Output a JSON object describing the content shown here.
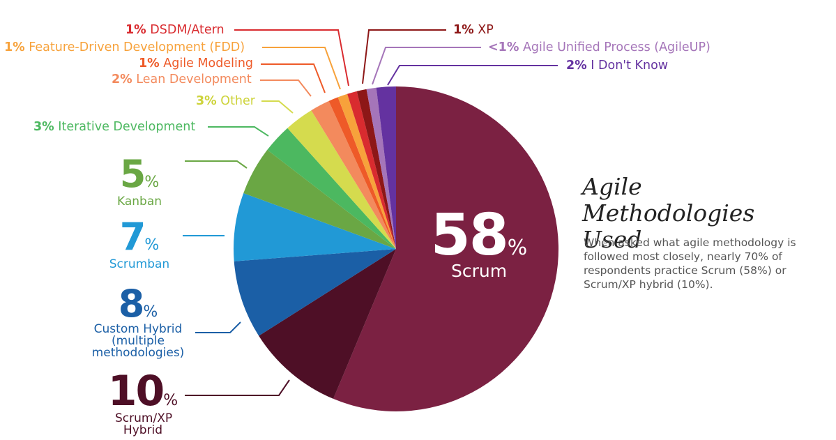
{
  "chart_data": {
    "type": "pie",
    "title": "Agile Methodologies Used",
    "description": "When asked what agile methodology is followed most closely, nearly 70% of respondents practice Scrum (58%) or Scrum/XP hybrid (10%).",
    "slices": [
      {
        "label": "Scrum",
        "pct_label": "58",
        "value": 58,
        "color": "#7b2142"
      },
      {
        "label": "Scrum/XP Hybrid",
        "pct_label": "10",
        "value": 10,
        "color": "#4e0f26"
      },
      {
        "label": "Custom Hybrid (multiple methodologies)",
        "pct_label": "8",
        "value": 8,
        "color": "#1b5fa6"
      },
      {
        "label": "Scrumban",
        "pct_label": "7",
        "value": 7,
        "color": "#2199d6"
      },
      {
        "label": "Kanban",
        "pct_label": "5",
        "value": 5,
        "color": "#6aa744"
      },
      {
        "label": "Iterative Development",
        "pct_label": "3%",
        "value": 3,
        "color": "#4cb860"
      },
      {
        "label": "Other",
        "pct_label": "3%",
        "value": 3,
        "color": "#d5db4e"
      },
      {
        "label": "Lean Development",
        "pct_label": "2%",
        "value": 2,
        "color": "#f38a5d"
      },
      {
        "label": "Agile Modeling",
        "pct_label": "1%",
        "value": 1,
        "color": "#ee5a28"
      },
      {
        "label": "Feature-Driven Development (FDD)",
        "pct_label": "1%",
        "value": 1,
        "color": "#f7a23b"
      },
      {
        "label": "DSDM/Atern",
        "pct_label": "1%",
        "value": 1,
        "color": "#d92b2f"
      },
      {
        "label": "XP",
        "pct_label": "1%",
        "value": 1,
        "color": "#8d1717"
      },
      {
        "label": "Agile Unified Process (AgileUP)",
        "pct_label": "<1%",
        "value": 1,
        "color": "#a575b9"
      },
      {
        "label": "I Don't Know",
        "pct_label": "2%",
        "value": 2,
        "color": "#6432a0"
      }
    ],
    "percent_sign": "%",
    "legend": "none"
  }
}
